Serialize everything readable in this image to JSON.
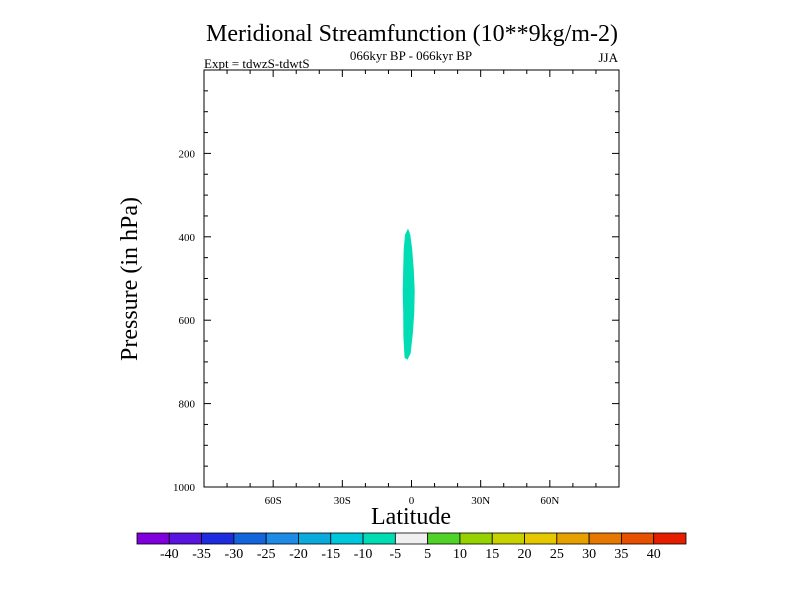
{
  "chart_data": {
    "type": "heatmap",
    "title": "Meridional Streamfunction (10**9kg/m-2)",
    "subtitle": "066kyr BP - 066kyr BP",
    "experiment": "Expt = tdwzS-tdwtS",
    "season": "JJA",
    "xlabel": "Latitude",
    "ylabel": "Pressure (in hPa)",
    "xlim": [
      -90,
      90
    ],
    "ylim": [
      1000,
      0
    ],
    "x_ticks": [
      {
        "value": -60,
        "label": "60S"
      },
      {
        "value": -30,
        "label": "30S"
      },
      {
        "value": 0,
        "label": "0"
      },
      {
        "value": 30,
        "label": "30N"
      },
      {
        "value": 60,
        "label": "60N"
      }
    ],
    "y_ticks": [
      {
        "value": 200,
        "label": "200"
      },
      {
        "value": 400,
        "label": "400"
      },
      {
        "value": 600,
        "label": "600"
      },
      {
        "value": 800,
        "label": "800"
      },
      {
        "value": 1000,
        "label": "1000"
      }
    ],
    "colorbar": {
      "labels": [
        "-40",
        "-35",
        "-30",
        "-25",
        "-20",
        "-15",
        "-10",
        "-5",
        "5",
        "10",
        "15",
        "20",
        "25",
        "30",
        "35",
        "40"
      ],
      "colors": [
        "#7f00dc",
        "#5a14e0",
        "#1e2ce0",
        "#1464dc",
        "#1e8ce6",
        "#0aaadc",
        "#00c8dc",
        "#00dcb4",
        "#f0f0f0",
        "#50d228",
        "#96d200",
        "#c8d200",
        "#e6c800",
        "#e6a000",
        "#e67800",
        "#e65000",
        "#e61e00"
      ]
    },
    "regions": [
      {
        "name": "contour-region",
        "level_range": [
          -10,
          -5
        ],
        "color": "#00dcb4",
        "outline": [
          [
            -1.5,
            380
          ],
          [
            -0.5,
            395
          ],
          [
            0.3,
            430
          ],
          [
            1.0,
            480
          ],
          [
            1.4,
            530
          ],
          [
            1.2,
            580
          ],
          [
            0.6,
            630
          ],
          [
            -0.4,
            680
          ],
          [
            -1.8,
            695
          ],
          [
            -3.0,
            690
          ],
          [
            -3.5,
            640
          ],
          [
            -3.6,
            580
          ],
          [
            -3.8,
            530
          ],
          [
            -3.6,
            480
          ],
          [
            -3.4,
            430
          ],
          [
            -2.8,
            395
          ]
        ]
      }
    ]
  }
}
